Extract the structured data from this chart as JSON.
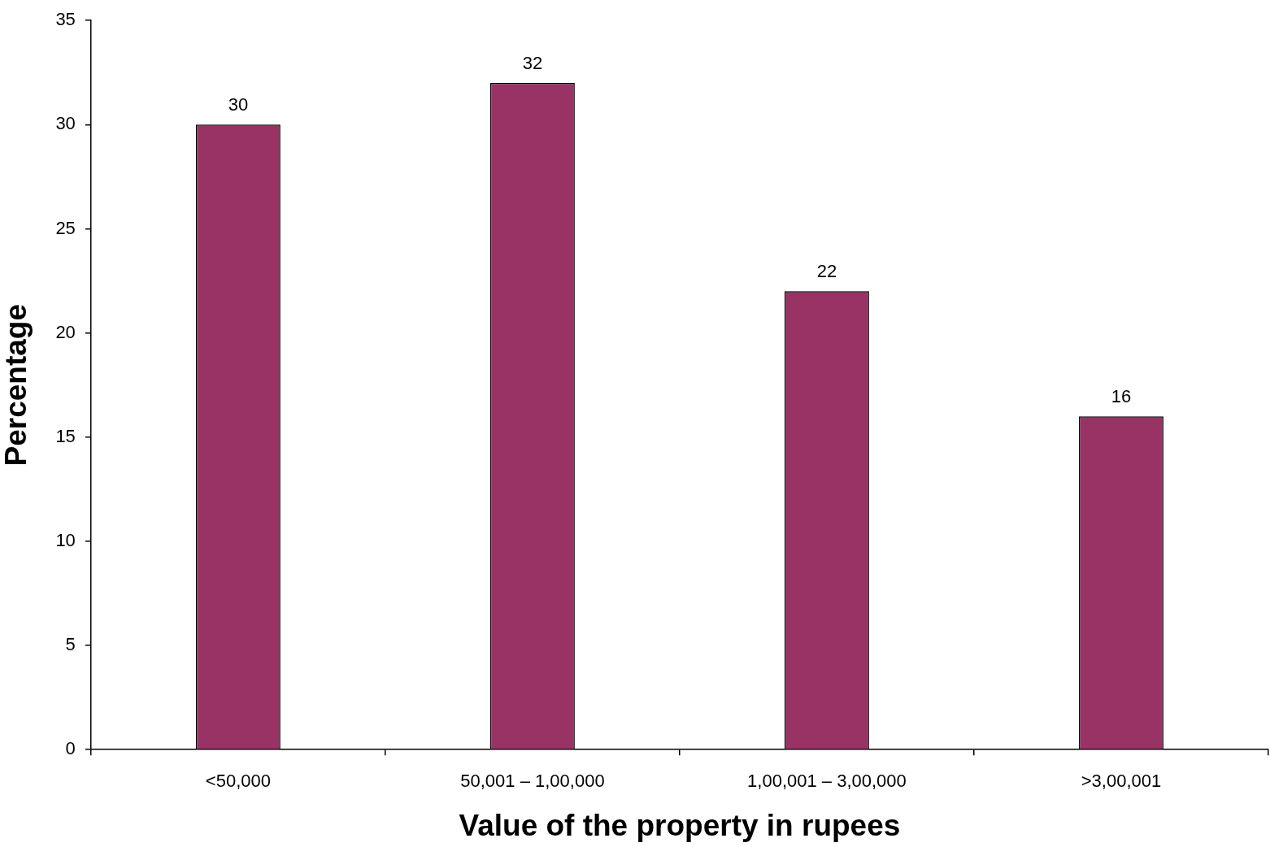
{
  "chart_data": {
    "type": "bar",
    "xlabel": "Value of the property in rupees",
    "ylabel": "Percentage",
    "categories": [
      "<50,000",
      "50,001 – 1,00,000",
      "1,00,001 – 3,00,000",
      ">3,00,001"
    ],
    "values": [
      30,
      32,
      22,
      16
    ],
    "color": "#993366",
    "ylim": [
      0,
      35
    ],
    "yticks": [
      0,
      5,
      10,
      15,
      20,
      25,
      30,
      35
    ],
    "grid": false,
    "legend": false,
    "data_labels": true
  }
}
